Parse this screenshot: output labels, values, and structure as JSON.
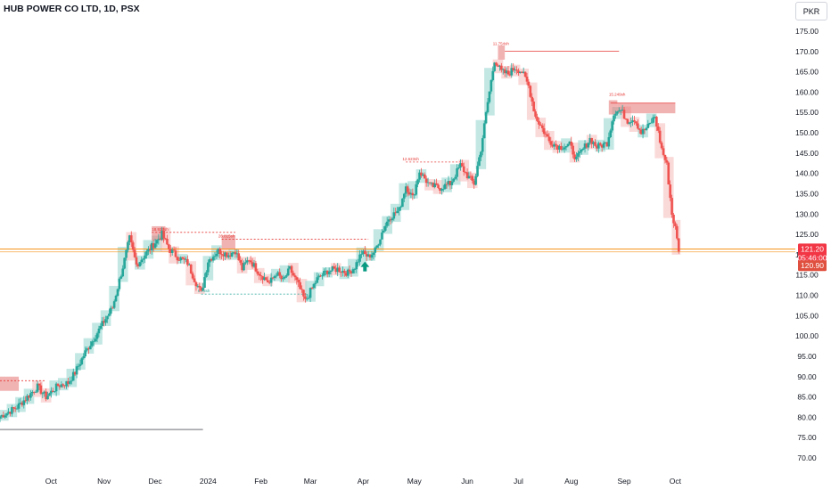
{
  "header": {
    "title": "HUB POWER CO LTD, 1D, PSX",
    "currency_label": "PKR"
  },
  "colors": {
    "up": "#26a69a",
    "down": "#ef5350",
    "up_box": "#a3dcd5",
    "down_box": "#f7c4c4",
    "supply_zone": "#e57373",
    "price_line": "#f7931a",
    "current_badge": "#f23645",
    "close_badge": "#e0503f"
  },
  "chart_data": {
    "type": "candlestick",
    "title": "HUB POWER CO LTD, 1D, PSX",
    "ylim": [
      66,
      179
    ],
    "yticks": [
      70,
      75,
      80,
      85,
      90,
      95,
      100,
      105,
      110,
      115,
      120,
      125,
      130,
      135,
      140,
      145,
      150,
      155,
      160,
      165,
      170,
      175
    ],
    "ytick_labels": [
      "70.00",
      "75.00",
      "80.00",
      "85.00",
      "90.00",
      "95.00",
      "100.00",
      "105.00",
      "110.00",
      "115.00",
      "120.00",
      "125.00",
      "130.00",
      "135.00",
      "140.00",
      "145.00",
      "150.00",
      "155.00",
      "160.00",
      "165.00",
      "170.00",
      "175.00"
    ],
    "xticks": [
      {
        "label": "Oct",
        "day": 60
      },
      {
        "label": "Nov",
        "day": 91
      },
      {
        "label": "Dec",
        "day": 121
      },
      {
        "label": "2024",
        "day": 152
      },
      {
        "label": "Feb",
        "day": 183
      },
      {
        "label": "Mar",
        "day": 212
      },
      {
        "label": "Apr",
        "day": 243
      },
      {
        "label": "May",
        "day": 273
      },
      {
        "label": "Jun",
        "day": 304
      },
      {
        "label": "Jul",
        "day": 334
      },
      {
        "label": "Aug",
        "day": 365
      },
      {
        "label": "Sep",
        "day": 396
      },
      {
        "label": "Oct",
        "day": 426
      }
    ],
    "xlim_days": [
      30,
      465
    ],
    "anchors": [
      {
        "day": 30,
        "close": 80.2
      },
      {
        "day": 40,
        "close": 82.5
      },
      {
        "day": 52,
        "close": 87.5
      },
      {
        "day": 57,
        "close": 85.0
      },
      {
        "day": 64,
        "close": 87.8
      },
      {
        "day": 70,
        "close": 88.5
      },
      {
        "day": 74,
        "close": 91.0
      },
      {
        "day": 80,
        "close": 96.0
      },
      {
        "day": 88,
        "close": 101.5
      },
      {
        "day": 96,
        "close": 107.0
      },
      {
        "day": 102,
        "close": 117.0
      },
      {
        "day": 106,
        "close": 124.0
      },
      {
        "day": 110,
        "close": 117.5
      },
      {
        "day": 116,
        "close": 120.5
      },
      {
        "day": 120,
        "close": 122.5
      },
      {
        "day": 125,
        "close": 125.0
      },
      {
        "day": 129,
        "close": 121.5
      },
      {
        "day": 134,
        "close": 119.5
      },
      {
        "day": 140,
        "close": 118.0
      },
      {
        "day": 144,
        "close": 114.0
      },
      {
        "day": 148,
        "close": 110.5
      },
      {
        "day": 152,
        "close": 118.5
      },
      {
        "day": 158,
        "close": 121.0
      },
      {
        "day": 164,
        "close": 120.0
      },
      {
        "day": 168,
        "close": 121.0
      },
      {
        "day": 172,
        "close": 116.5
      },
      {
        "day": 176,
        "close": 119.0
      },
      {
        "day": 182,
        "close": 115.5
      },
      {
        "day": 188,
        "close": 113.0
      },
      {
        "day": 192,
        "close": 115.5
      },
      {
        "day": 196,
        "close": 113.5
      },
      {
        "day": 200,
        "close": 116.5
      },
      {
        "day": 205,
        "close": 112.5
      },
      {
        "day": 209,
        "close": 108.5
      },
      {
        "day": 212,
        "close": 111.0
      },
      {
        "day": 216,
        "close": 114.0
      },
      {
        "day": 222,
        "close": 116.0
      },
      {
        "day": 228,
        "close": 116.5
      },
      {
        "day": 234,
        "close": 115.5
      },
      {
        "day": 238,
        "close": 117.0
      },
      {
        "day": 242,
        "close": 120.5
      },
      {
        "day": 246,
        "close": 119.5
      },
      {
        "day": 250,
        "close": 121.0
      },
      {
        "day": 254,
        "close": 125.5
      },
      {
        "day": 258,
        "close": 129.0
      },
      {
        "day": 264,
        "close": 131.0
      },
      {
        "day": 268,
        "close": 137.0
      },
      {
        "day": 272,
        "close": 134.0
      },
      {
        "day": 276,
        "close": 140.5
      },
      {
        "day": 282,
        "close": 137.0
      },
      {
        "day": 288,
        "close": 136.5
      },
      {
        "day": 294,
        "close": 137.5
      },
      {
        "day": 300,
        "close": 142.0
      },
      {
        "day": 304,
        "close": 139.5
      },
      {
        "day": 308,
        "close": 137.5
      },
      {
        "day": 312,
        "close": 146.0
      },
      {
        "day": 316,
        "close": 157.5
      },
      {
        "day": 320,
        "close": 168.0
      },
      {
        "day": 324,
        "close": 165.0
      },
      {
        "day": 328,
        "close": 164.5
      },
      {
        "day": 332,
        "close": 166.0
      },
      {
        "day": 336,
        "close": 165.0
      },
      {
        "day": 340,
        "close": 161.5
      },
      {
        "day": 344,
        "close": 154.0
      },
      {
        "day": 348,
        "close": 151.0
      },
      {
        "day": 352,
        "close": 148.0
      },
      {
        "day": 358,
        "close": 146.5
      },
      {
        "day": 364,
        "close": 147.0
      },
      {
        "day": 368,
        "close": 143.5
      },
      {
        "day": 372,
        "close": 146.0
      },
      {
        "day": 376,
        "close": 148.5
      },
      {
        "day": 380,
        "close": 146.5
      },
      {
        "day": 386,
        "close": 147.5
      },
      {
        "day": 390,
        "close": 155.0
      },
      {
        "day": 394,
        "close": 155.5
      },
      {
        "day": 398,
        "close": 153.0
      },
      {
        "day": 402,
        "close": 153.5
      },
      {
        "day": 406,
        "close": 150.0
      },
      {
        "day": 410,
        "close": 151.5
      },
      {
        "day": 414,
        "close": 154.0
      },
      {
        "day": 418,
        "close": 146.0
      },
      {
        "day": 421,
        "close": 142.0
      },
      {
        "day": 424,
        "close": 130.0
      },
      {
        "day": 426,
        "close": 126.5
      },
      {
        "day": 428,
        "close": 120.8
      }
    ],
    "last_price": "121.20",
    "countdown": "05:46:00",
    "close_price": "120.90",
    "levels": [
      {
        "name": "price-line",
        "value": 121.0
      },
      {
        "name": "level-8m",
        "value": 110.3,
        "label": "8.73sh"
      },
      {
        "name": "level-1",
        "value": 125.5,
        "label": "18.927sh"
      },
      {
        "name": "level-2",
        "value": 123.8,
        "label": "26.815sh"
      },
      {
        "name": "level-3",
        "value": 142.8,
        "label": "12.623sh"
      },
      {
        "name": "level-4",
        "value": 170.1,
        "label": "11.754sh"
      },
      {
        "name": "level-5",
        "value": 157.3,
        "label": "15.249sh"
      },
      {
        "name": "level-low",
        "value": 77.0
      }
    ]
  }
}
